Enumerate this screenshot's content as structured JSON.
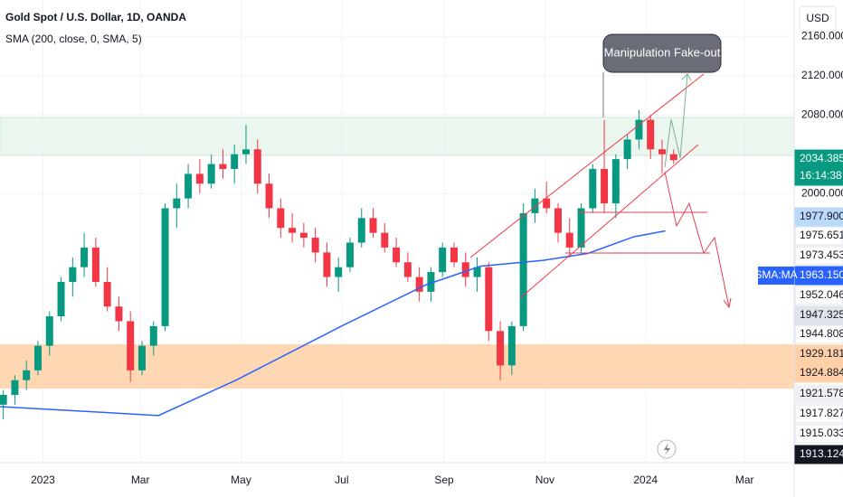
{
  "chart_data": {
    "type": "candlestick",
    "title": "Gold Spot / U.S. Dollar, 1D, OANDA",
    "subtitle": "SMA (200, close, 0, SMA, 5)",
    "currency": "USD",
    "annotation": "Manipulation Fake-out",
    "up_color": "#089981",
    "down_color": "#f23645",
    "xlim": [
      -26,
      455
    ],
    "xticks": [
      {
        "value": 0,
        "label": "2023"
      },
      {
        "value": 59,
        "label": "Mar"
      },
      {
        "value": 120,
        "label": "May"
      },
      {
        "value": 181,
        "label": "Jul"
      },
      {
        "value": 243,
        "label": "Sep"
      },
      {
        "value": 304,
        "label": "Nov"
      },
      {
        "value": 365,
        "label": "2024"
      },
      {
        "value": 425,
        "label": "Mar"
      }
    ],
    "ylim": [
      1726,
      2197
    ],
    "yticks": [
      {
        "value": 2160,
        "label": "2160.000"
      },
      {
        "value": 2120,
        "label": "2120.000"
      },
      {
        "value": 2080,
        "label": "2080.000"
      },
      {
        "value": 2000,
        "label": "2000.000"
      }
    ],
    "grid": true,
    "x": [
      -24,
      -17,
      -10,
      -3,
      4,
      11,
      18,
      25,
      32,
      39,
      46,
      53,
      60,
      67,
      74,
      81,
      88,
      95,
      102,
      109,
      116,
      123,
      130,
      137,
      144,
      151,
      158,
      165,
      172,
      179,
      186,
      193,
      200,
      207,
      214,
      221,
      228,
      235,
      242,
      249,
      256,
      263,
      270,
      277,
      284,
      291,
      298,
      305,
      312,
      319,
      326,
      333,
      340,
      347,
      354,
      361,
      368,
      375,
      382
    ],
    "open": [
      1785,
      1795,
      1810,
      1820,
      1845,
      1875,
      1910,
      1925,
      1945,
      1910,
      1885,
      1870,
      1820,
      1845,
      1865,
      1985,
      1995,
      2020,
      2010,
      2030,
      2025,
      2040,
      2045,
      2010,
      1985,
      1965,
      1960,
      1955,
      1940,
      1915,
      1925,
      1950,
      1975,
      1960,
      1945,
      1930,
      1915,
      1900,
      1920,
      1945,
      1930,
      1915,
      1925,
      1860,
      1825,
      1865,
      1980,
      1995,
      1985,
      1960,
      1945,
      1985,
      2025,
      1990,
      2035,
      2055,
      2075,
      2045,
      2040
    ],
    "high": [
      1800,
      1815,
      1830,
      1850,
      1880,
      1915,
      1935,
      1960,
      1955,
      1925,
      1895,
      1880,
      1850,
      1870,
      1990,
      2010,
      2030,
      2035,
      2040,
      2045,
      2050,
      2070,
      2055,
      2020,
      1995,
      1980,
      1970,
      1965,
      1950,
      1935,
      1955,
      1985,
      1985,
      1970,
      1955,
      1940,
      1925,
      1925,
      1950,
      1950,
      1940,
      1935,
      1930,
      1870,
      1870,
      1990,
      2005,
      2012,
      1990,
      1975,
      1990,
      2030,
      2075,
      2040,
      2060,
      2085,
      2080,
      2055,
      2045
    ],
    "low": [
      1770,
      1785,
      1800,
      1815,
      1835,
      1870,
      1895,
      1915,
      1905,
      1880,
      1860,
      1808,
      1815,
      1835,
      1860,
      1965,
      1985,
      2000,
      2005,
      2015,
      2010,
      2030,
      2000,
      1975,
      1955,
      1950,
      1945,
      1930,
      1905,
      1900,
      1920,
      1945,
      1955,
      1940,
      1925,
      1910,
      1890,
      1890,
      1915,
      1925,
      1905,
      1900,
      1850,
      1810,
      1815,
      1860,
      1970,
      1980,
      1950,
      1935,
      1940,
      1980,
      1980,
      1975,
      2025,
      2045,
      2035,
      2020,
      2030
    ],
    "close": [
      1795,
      1810,
      1820,
      1845,
      1875,
      1910,
      1925,
      1945,
      1910,
      1885,
      1870,
      1820,
      1845,
      1865,
      1985,
      1995,
      2020,
      2010,
      2030,
      2025,
      2040,
      2045,
      2010,
      1985,
      1965,
      1960,
      1955,
      1940,
      1915,
      1925,
      1950,
      1975,
      1960,
      1945,
      1930,
      1915,
      1900,
      1920,
      1945,
      1930,
      1915,
      1925,
      1860,
      1825,
      1865,
      1980,
      1995,
      1985,
      1960,
      1945,
      1985,
      2025,
      1990,
      2035,
      2055,
      2075,
      2045,
      2040,
      2034
    ],
    "sma": {
      "color": "#2962ff",
      "x": [
        -26,
        70,
        117,
        182,
        232,
        265,
        303,
        330,
        358,
        377
      ],
      "values": [
        1783,
        1774,
        1810,
        1866,
        1907,
        1926,
        1932,
        1939,
        1956,
        1962
      ]
    },
    "price_badges": [
      {
        "label": "2034.385",
        "color": "#089981"
      },
      {
        "label": "16:14:38",
        "color": "#089981"
      },
      {
        "label": "1977.900",
        "color": "#bbd9fb"
      },
      {
        "label": "1975.651",
        "color": "#ffffff"
      },
      {
        "label": "1973.453",
        "color": "#ffffff"
      },
      {
        "label": "1963.150",
        "color": "#2962ff"
      },
      {
        "label": "1952.046",
        "color": "#ffffff"
      },
      {
        "label": "1947.325",
        "color": "#e0e3eb"
      },
      {
        "label": "1944.808",
        "color": "#ffffff"
      },
      {
        "label": "1929.181",
        "color": "#ffd0a8"
      },
      {
        "label": "1924.884",
        "color": "#ffd0a8"
      },
      {
        "label": "1921.578",
        "color": "#eef0f4"
      },
      {
        "label": "1917.827",
        "color": "#ffffff"
      },
      {
        "label": "1915.033",
        "color": "#ffffff"
      },
      {
        "label": "1913.124",
        "color": "#131722"
      }
    ],
    "sma_tag": "SMA:MA"
  }
}
